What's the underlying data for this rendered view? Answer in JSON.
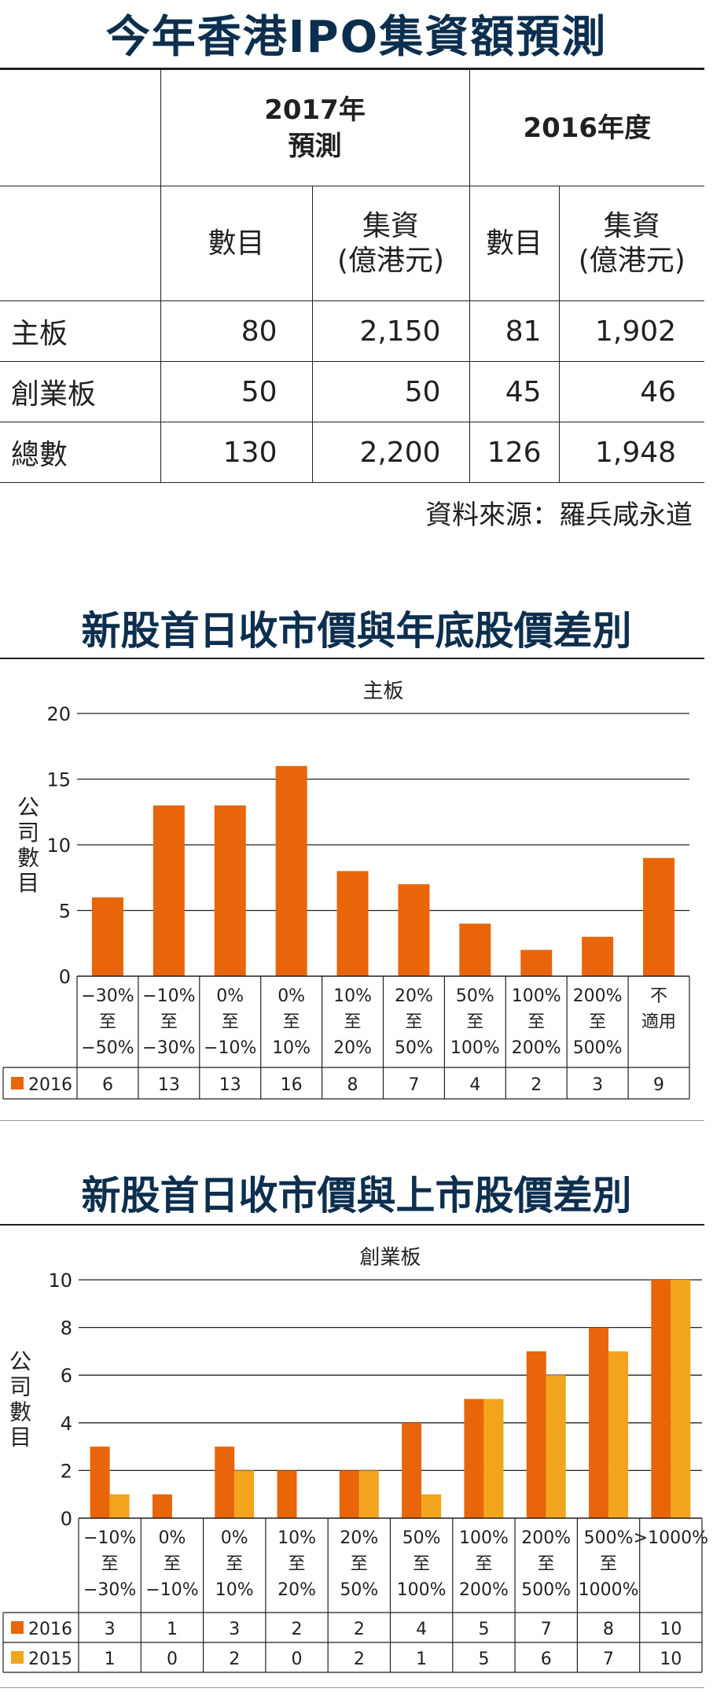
{
  "table": {
    "title": "今年香港IPO集資額預測",
    "group_2017": [
      "2017年",
      "預測"
    ],
    "group_2016": "2016年度",
    "col_count": "數目",
    "col_raise": [
      "集資",
      "(億港元)"
    ],
    "rows": [
      {
        "label": "主板",
        "v2017_count": "80",
        "v2017_raise": "2,150",
        "v2016_count": "81",
        "v2016_raise": "1,902"
      },
      {
        "label": "創業板",
        "v2017_count": "50",
        "v2017_raise": "50",
        "v2016_count": "45",
        "v2016_raise": "46"
      },
      {
        "label": "總數",
        "v2017_count": "130",
        "v2017_raise": "2,200",
        "v2016_count": "126",
        "v2016_raise": "1,948"
      }
    ],
    "source": "資料來源：羅兵咸永道"
  },
  "chart_data": [
    {
      "type": "bar",
      "title": "新股首日收市價與年底股價差別",
      "subtitle": "主板",
      "ylabel": "公司數目",
      "ylim": [
        0,
        20
      ],
      "yticks": [
        0,
        5,
        10,
        15,
        20
      ],
      "categories": [
        [
          "−30%",
          "至",
          "−50%"
        ],
        [
          "−10%",
          "至",
          "−30%"
        ],
        [
          "0%",
          "至",
          "−10%"
        ],
        [
          "0%",
          "至",
          "10%"
        ],
        [
          "10%",
          "至",
          "20%"
        ],
        [
          "20%",
          "至",
          "50%"
        ],
        [
          "50%",
          "至",
          "100%"
        ],
        [
          "100%",
          "至",
          "200%"
        ],
        [
          "200%",
          "至",
          "500%"
        ],
        [
          "不",
          "適用"
        ]
      ],
      "series": [
        {
          "name": "2016",
          "values": [
            6,
            13,
            13,
            16,
            8,
            7,
            4,
            2,
            3,
            9
          ],
          "color": "#e8650a"
        }
      ],
      "grid": true,
      "legend": "table-below"
    },
    {
      "type": "bar",
      "title": "新股首日收市價與上市股價差別",
      "subtitle": "創業板",
      "ylabel": "公司數目",
      "ylim": [
        0,
        10
      ],
      "yticks": [
        0,
        2,
        4,
        6,
        8,
        10
      ],
      "categories": [
        [
          "−10%",
          "至",
          "−30%"
        ],
        [
          "0%",
          "至",
          "−10%"
        ],
        [
          "0%",
          "至",
          "10%"
        ],
        [
          "10%",
          "至",
          "20%"
        ],
        [
          "20%",
          "至",
          "50%"
        ],
        [
          "50%",
          "至",
          "100%"
        ],
        [
          "100%",
          "至",
          "200%"
        ],
        [
          "200%",
          "至",
          "500%"
        ],
        [
          "500%",
          "至",
          "1000%"
        ],
        [
          ">1000%"
        ]
      ],
      "series": [
        {
          "name": "2016",
          "values": [
            3,
            1,
            3,
            2,
            2,
            4,
            5,
            7,
            8,
            10
          ],
          "color": "#e8650a"
        },
        {
          "name": "2015",
          "values": [
            1,
            0,
            2,
            0,
            2,
            1,
            5,
            6,
            7,
            10
          ],
          "color": "#f2a51c"
        }
      ],
      "grid": true,
      "legend": "table-below"
    }
  ]
}
